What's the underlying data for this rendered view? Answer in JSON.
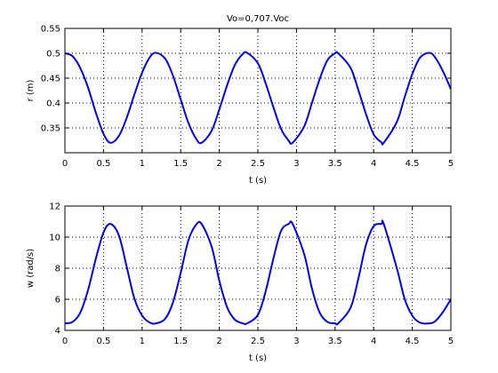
{
  "chart_data": [
    {
      "type": "line",
      "title": "Vo=0,707.Voc",
      "xlabel": "t (s)",
      "ylabel": "r (m)",
      "xlim": [
        0,
        5
      ],
      "ylim": [
        0.3,
        0.55
      ],
      "xticks": [
        "0",
        "0.5",
        "1",
        "1.5",
        "2",
        "2.5",
        "3",
        "3.5",
        "4",
        "4.5",
        "5"
      ],
      "yticks": [
        "0.35",
        "0.4",
        "0.45",
        "0.5",
        "0.55"
      ],
      "grid": true,
      "grid_style": "dotted",
      "line_color": "#0000ff",
      "series": [
        {
          "x": [
            0,
            0.1,
            0.2,
            0.3,
            0.4,
            0.5,
            0.59,
            0.7,
            0.8,
            0.9,
            1.0,
            1.1,
            1.18,
            1.3,
            1.4,
            1.5,
            1.6,
            1.7,
            1.77,
            1.9,
            2.0,
            2.1,
            2.2,
            2.3,
            2.36,
            2.5,
            2.6,
            2.7,
            2.8,
            2.9,
            2.95,
            3.1,
            3.2,
            3.3,
            3.4,
            3.5,
            3.54,
            3.7,
            3.8,
            3.9,
            4.0,
            4.1,
            4.13,
            4.3,
            4.4,
            4.5,
            4.6,
            4.72,
            4.8,
            4.9,
            5.0
          ],
          "values": [
            0.5,
            0.494,
            0.47,
            0.431,
            0.381,
            0.338,
            0.32,
            0.334,
            0.37,
            0.417,
            0.461,
            0.492,
            0.501,
            0.489,
            0.455,
            0.407,
            0.36,
            0.328,
            0.32,
            0.344,
            0.387,
            0.435,
            0.476,
            0.498,
            0.501,
            0.48,
            0.44,
            0.392,
            0.348,
            0.324,
            0.32,
            0.353,
            0.4,
            0.448,
            0.486,
            0.5,
            0.5,
            0.471,
            0.427,
            0.378,
            0.337,
            0.321,
            0.32,
            0.362,
            0.411,
            0.458,
            0.491,
            0.501,
            0.491,
            0.463,
            0.428
          ]
        }
      ]
    },
    {
      "type": "line",
      "xlabel": "t (s)",
      "ylabel": "w (rad/s)",
      "xlim": [
        0,
        5
      ],
      "ylim": [
        4,
        12
      ],
      "xticks": [
        "0",
        "0.5",
        "1",
        "1.5",
        "2",
        "2.5",
        "3",
        "3.5",
        "4",
        "4.5",
        "5"
      ],
      "yticks": [
        "4",
        "6",
        "8",
        "10",
        "12"
      ],
      "grid": true,
      "grid_style": "dotted",
      "line_color": "#0000ff",
      "series": [
        {
          "x": [
            0,
            0.1,
            0.2,
            0.3,
            0.4,
            0.5,
            0.59,
            0.7,
            0.8,
            0.9,
            1.0,
            1.1,
            1.18,
            1.3,
            1.4,
            1.5,
            1.6,
            1.7,
            1.77,
            1.9,
            2.0,
            2.1,
            2.2,
            2.3,
            2.36,
            2.5,
            2.6,
            2.7,
            2.8,
            2.9,
            2.95,
            3.1,
            3.2,
            3.3,
            3.4,
            3.5,
            3.54,
            3.7,
            3.8,
            3.9,
            4.0,
            4.1,
            4.13,
            4.3,
            4.4,
            4.5,
            4.6,
            4.72,
            4.8,
            4.9,
            5.0
          ],
          "values": [
            4.45,
            4.55,
            5.15,
            6.6,
            8.6,
            10.3,
            10.85,
            10.1,
            8.1,
            6.05,
            4.95,
            4.5,
            4.45,
            4.75,
            5.8,
            7.7,
            9.8,
            10.8,
            10.85,
            9.4,
            7.2,
            5.5,
            4.7,
            4.46,
            4.45,
            5.0,
            6.5,
            8.6,
            10.4,
            10.85,
            10.85,
            8.9,
            6.7,
            5.15,
            4.55,
            4.45,
            4.45,
            5.45,
            7.3,
            9.5,
            10.7,
            10.85,
            10.85,
            8.0,
            6.05,
            4.95,
            4.5,
            4.45,
            4.6,
            5.2,
            6.0
          ]
        }
      ]
    }
  ]
}
